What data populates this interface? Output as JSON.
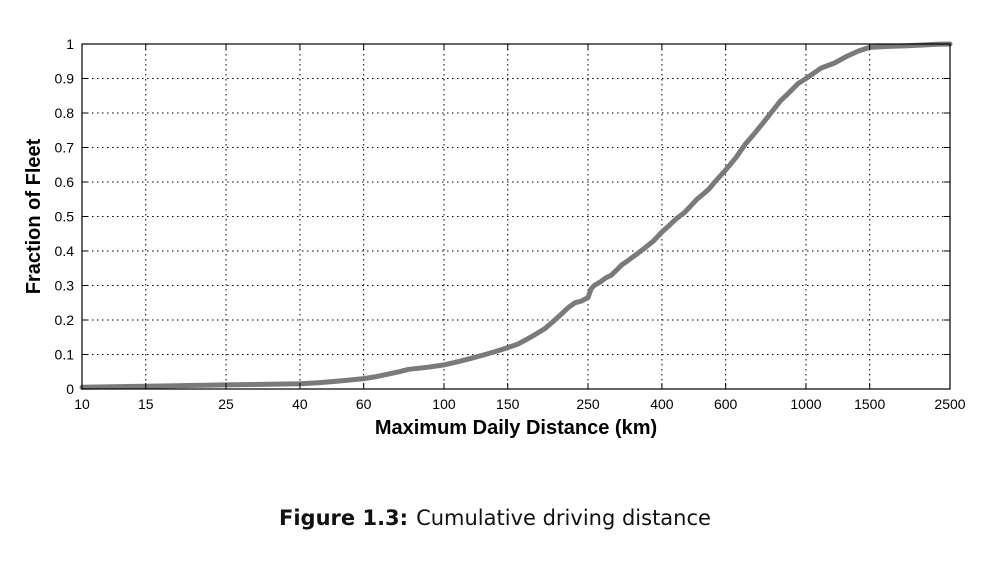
{
  "chart_data": {
    "type": "line",
    "xscale": "log",
    "xlabel": "Maximum Daily Distance (km)",
    "ylabel": "Fraction of Fleet",
    "xlim": [
      10,
      2500
    ],
    "ylim": [
      0,
      1
    ],
    "grid": true,
    "x_ticks": [
      10,
      15,
      25,
      40,
      60,
      100,
      150,
      250,
      400,
      600,
      1000,
      1500,
      2500
    ],
    "x_tick_labels": [
      "10",
      "15",
      "25",
      "40",
      "60",
      "100",
      "150",
      "250",
      "400",
      "600",
      "1000",
      "1500",
      "2500"
    ],
    "y_ticks": [
      0,
      0.1,
      0.2,
      0.3,
      0.4,
      0.5,
      0.6,
      0.7,
      0.8,
      0.9,
      1
    ],
    "y_tick_labels": [
      "0",
      "0.1",
      "0.2",
      "0.3",
      "0.4",
      "0.5",
      "0.6",
      "0.7",
      "0.8",
      "0.9",
      "1"
    ],
    "line_color": "#7a7a7a",
    "series": [
      {
        "x": [
          10,
          15,
          25,
          40,
          45,
          50,
          55,
          60,
          65,
          70,
          75,
          80,
          90,
          100,
          110,
          120,
          130,
          140,
          150,
          160,
          170,
          180,
          190,
          200,
          210,
          220,
          230,
          240,
          250,
          255,
          260,
          270,
          280,
          290,
          300,
          310,
          320,
          340,
          360,
          380,
          400,
          420,
          440,
          460,
          480,
          500,
          520,
          540,
          560,
          600,
          640,
          680,
          720,
          760,
          800,
          850,
          900,
          950,
          1000,
          1050,
          1100,
          1200,
          1300,
          1400,
          1500,
          1700,
          1900,
          2100,
          2300,
          2500
        ],
        "y": [
          0.005,
          0.008,
          0.012,
          0.015,
          0.018,
          0.022,
          0.026,
          0.03,
          0.036,
          0.043,
          0.05,
          0.057,
          0.063,
          0.07,
          0.08,
          0.09,
          0.1,
          0.11,
          0.12,
          0.13,
          0.145,
          0.16,
          0.175,
          0.195,
          0.215,
          0.235,
          0.25,
          0.255,
          0.265,
          0.29,
          0.3,
          0.31,
          0.322,
          0.33,
          0.345,
          0.36,
          0.37,
          0.39,
          0.41,
          0.43,
          0.455,
          0.475,
          0.495,
          0.51,
          0.53,
          0.55,
          0.565,
          0.58,
          0.6,
          0.635,
          0.67,
          0.71,
          0.74,
          0.77,
          0.8,
          0.835,
          0.86,
          0.885,
          0.9,
          0.915,
          0.93,
          0.945,
          0.965,
          0.98,
          0.99,
          0.993,
          0.995,
          0.997,
          0.999,
          1.0
        ]
      }
    ]
  },
  "caption": {
    "label": "Figure 1.3:",
    "text": "Cumulative driving distance"
  }
}
